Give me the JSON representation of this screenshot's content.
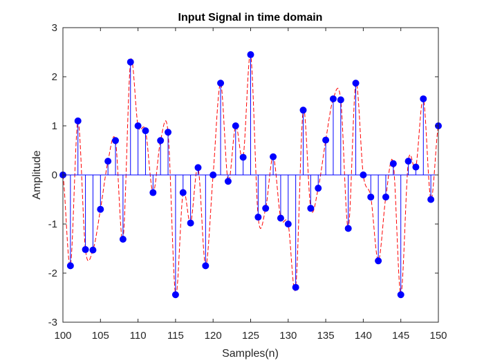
{
  "chart_data": {
    "type": "stem",
    "title": "Input Signal in time domain",
    "xlabel": "Samples(n)",
    "ylabel": "Amplitude",
    "xlim": [
      100,
      150
    ],
    "ylim": [
      -3,
      3
    ],
    "x_ticks": [
      100,
      105,
      110,
      115,
      120,
      125,
      130,
      135,
      140,
      145,
      150
    ],
    "y_ticks": [
      -3,
      -2,
      -1,
      0,
      1,
      2,
      3
    ],
    "grid": false,
    "legend": "none",
    "samples": {
      "x": [
        100,
        101,
        102,
        103,
        104,
        105,
        106,
        107,
        108,
        109,
        110,
        111,
        112,
        113,
        114,
        115,
        116,
        117,
        118,
        119,
        120,
        121,
        122,
        123,
        124,
        125,
        126,
        127,
        128,
        129,
        130,
        131,
        132,
        133,
        134,
        135,
        136,
        137,
        138,
        139,
        140,
        141,
        142,
        143,
        144,
        145,
        146,
        147,
        148,
        149,
        150
      ],
      "y": [
        0,
        -1.85,
        1.1,
        -1.52,
        -1.53,
        -0.7,
        0.28,
        0.7,
        -1.31,
        2.3,
        1.0,
        0.9,
        -0.36,
        0.7,
        0.87,
        -2.44,
        -0.36,
        -0.98,
        0.15,
        -1.85,
        0,
        1.87,
        -0.13,
        1.0,
        0.36,
        2.45,
        -0.86,
        -0.68,
        0.37,
        -0.88,
        -1.0,
        -2.29,
        1.32,
        -0.68,
        -0.27,
        0.71,
        1.55,
        1.53,
        -1.09,
        1.87,
        0,
        -0.45,
        -1.75,
        -0.45,
        0.23,
        -2.44,
        0.28,
        0.16,
        1.55,
        -0.5,
        1.0
      ]
    },
    "colors": {
      "stem": "#0000ff",
      "marker": "#0000ff",
      "envelope": "#ff0000",
      "axes": "#262626",
      "baseline": "#0000ff"
    }
  }
}
